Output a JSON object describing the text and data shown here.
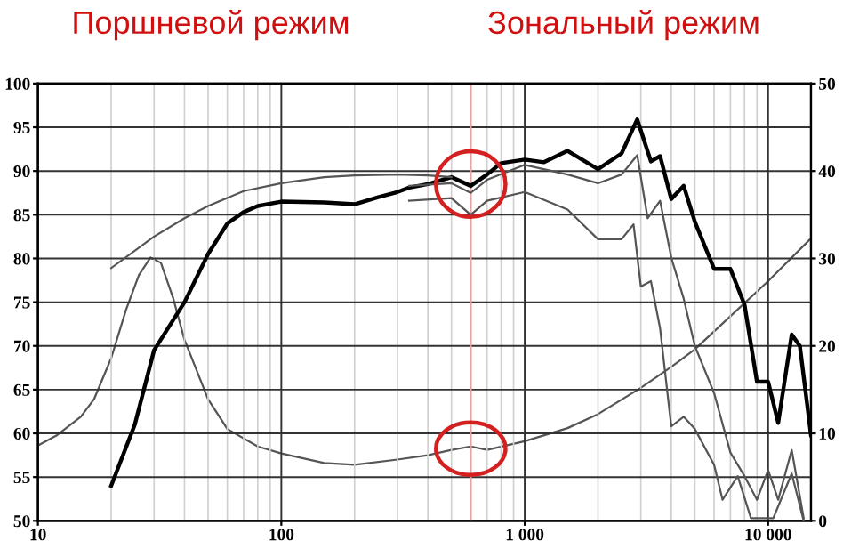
{
  "chart_data": {
    "type": "line",
    "annotations": [
      "Поршневой режим",
      "Зональный режим"
    ],
    "xlim": [
      10,
      15000
    ],
    "xticks": [
      10,
      100,
      {
        "value": 1000,
        "label": "1 000"
      },
      {
        "value": 10000,
        "label": "10 000"
      }
    ],
    "ylim": [
      50,
      100
    ],
    "yticks": [
      50,
      55,
      60,
      65,
      70,
      75,
      80,
      85,
      90,
      95,
      100
    ],
    "y2lim": [
      0,
      50
    ],
    "y2ticks": [
      0,
      10,
      20,
      30,
      40,
      50
    ],
    "log": "x",
    "grid": true,
    "legend": false,
    "marker": "none",
    "line_style": "solid",
    "ref_lines": [
      {
        "axis": "x",
        "value": 600,
        "color": "#e8a0a0"
      }
    ],
    "series": [
      {
        "color": "#000000",
        "x": [
          20,
          25,
          30,
          40,
          50,
          60,
          70,
          80,
          100,
          150,
          200,
          250,
          300,
          335,
          400,
          500,
          600,
          700,
          800,
          1000,
          1200,
          1500,
          2000,
          2500,
          2900,
          3300,
          3600,
          4000,
          4500,
          5000,
          6000,
          7000,
          8000,
          9000,
          10000,
          11000,
          12500,
          13500,
          15000
        ],
        "values": [
          54,
          61,
          69.5,
          75,
          80.5,
          84,
          85.3,
          86,
          86.5,
          86.4,
          86.2,
          87,
          87.6,
          88.1,
          88.5,
          89.3,
          88.3,
          89.6,
          90.9,
          91.3,
          91,
          92.3,
          90.2,
          92,
          95.9,
          91.1,
          91.7,
          86.8,
          88.3,
          84.2,
          78.8,
          78.8,
          74.7,
          65.9,
          65.9,
          61.2,
          71.3,
          70,
          59.8
        ]
      },
      {
        "color": "#555555",
        "x": [
          335,
          500,
          600,
          700,
          1000,
          1500,
          2000,
          2500,
          2900,
          3200,
          3600,
          4000,
          4500,
          5000,
          6000,
          7000,
          8000,
          9000,
          10000,
          11000,
          12500,
          14000
        ],
        "values": [
          88.3,
          88.6,
          87.5,
          89,
          90.7,
          89.6,
          88.6,
          89.6,
          91.8,
          84.6,
          86.6,
          80.1,
          75.4,
          70,
          64.6,
          57.8,
          55.1,
          52.4,
          55.8,
          52.4,
          58.1,
          50.3
        ]
      },
      {
        "color": "#555555",
        "x": [
          335,
          500,
          600,
          700,
          1000,
          1500,
          2000,
          2500,
          2800,
          3000,
          3300,
          3600,
          4000,
          4500,
          5000,
          6000,
          6500,
          7500,
          8500,
          10500,
          12500,
          14000
        ],
        "values": [
          86.6,
          86.9,
          85,
          86.6,
          87.6,
          85.6,
          82.2,
          82.2,
          83.9,
          76.8,
          77.4,
          72,
          60.8,
          61.9,
          60.5,
          56.4,
          52.4,
          55.1,
          50.3,
          50.3,
          55.4,
          50
        ]
      },
      {
        "color": "#555555",
        "x": [
          20,
          30,
          40,
          50,
          70,
          100,
          150,
          200,
          300,
          400,
          500
        ],
        "values": [
          78.9,
          82.5,
          84.6,
          86,
          87.7,
          88.6,
          89.3,
          89.5,
          89.6,
          89.5,
          89.3
        ]
      },
      {
        "color": "#555555",
        "axis": "y2",
        "x": [
          10,
          12,
          15,
          17,
          20,
          23,
          26,
          29,
          32,
          36,
          40,
          50,
          60,
          80,
          100,
          150,
          200,
          300,
          400,
          500,
          600,
          700,
          1000,
          1500,
          2000,
          3000,
          4000,
          5000,
          7000,
          10000,
          15000
        ],
        "values": [
          8.6,
          9.8,
          11.9,
          13.9,
          18.6,
          24.1,
          28.1,
          30.1,
          29.5,
          25.4,
          20.7,
          13.9,
          10.5,
          8.5,
          7.7,
          6.6,
          6.4,
          7,
          7.5,
          8.1,
          8.5,
          8.1,
          9.1,
          10.6,
          12.2,
          15.2,
          17.6,
          19.6,
          23.4,
          27.4,
          32.3
        ]
      }
    ]
  }
}
